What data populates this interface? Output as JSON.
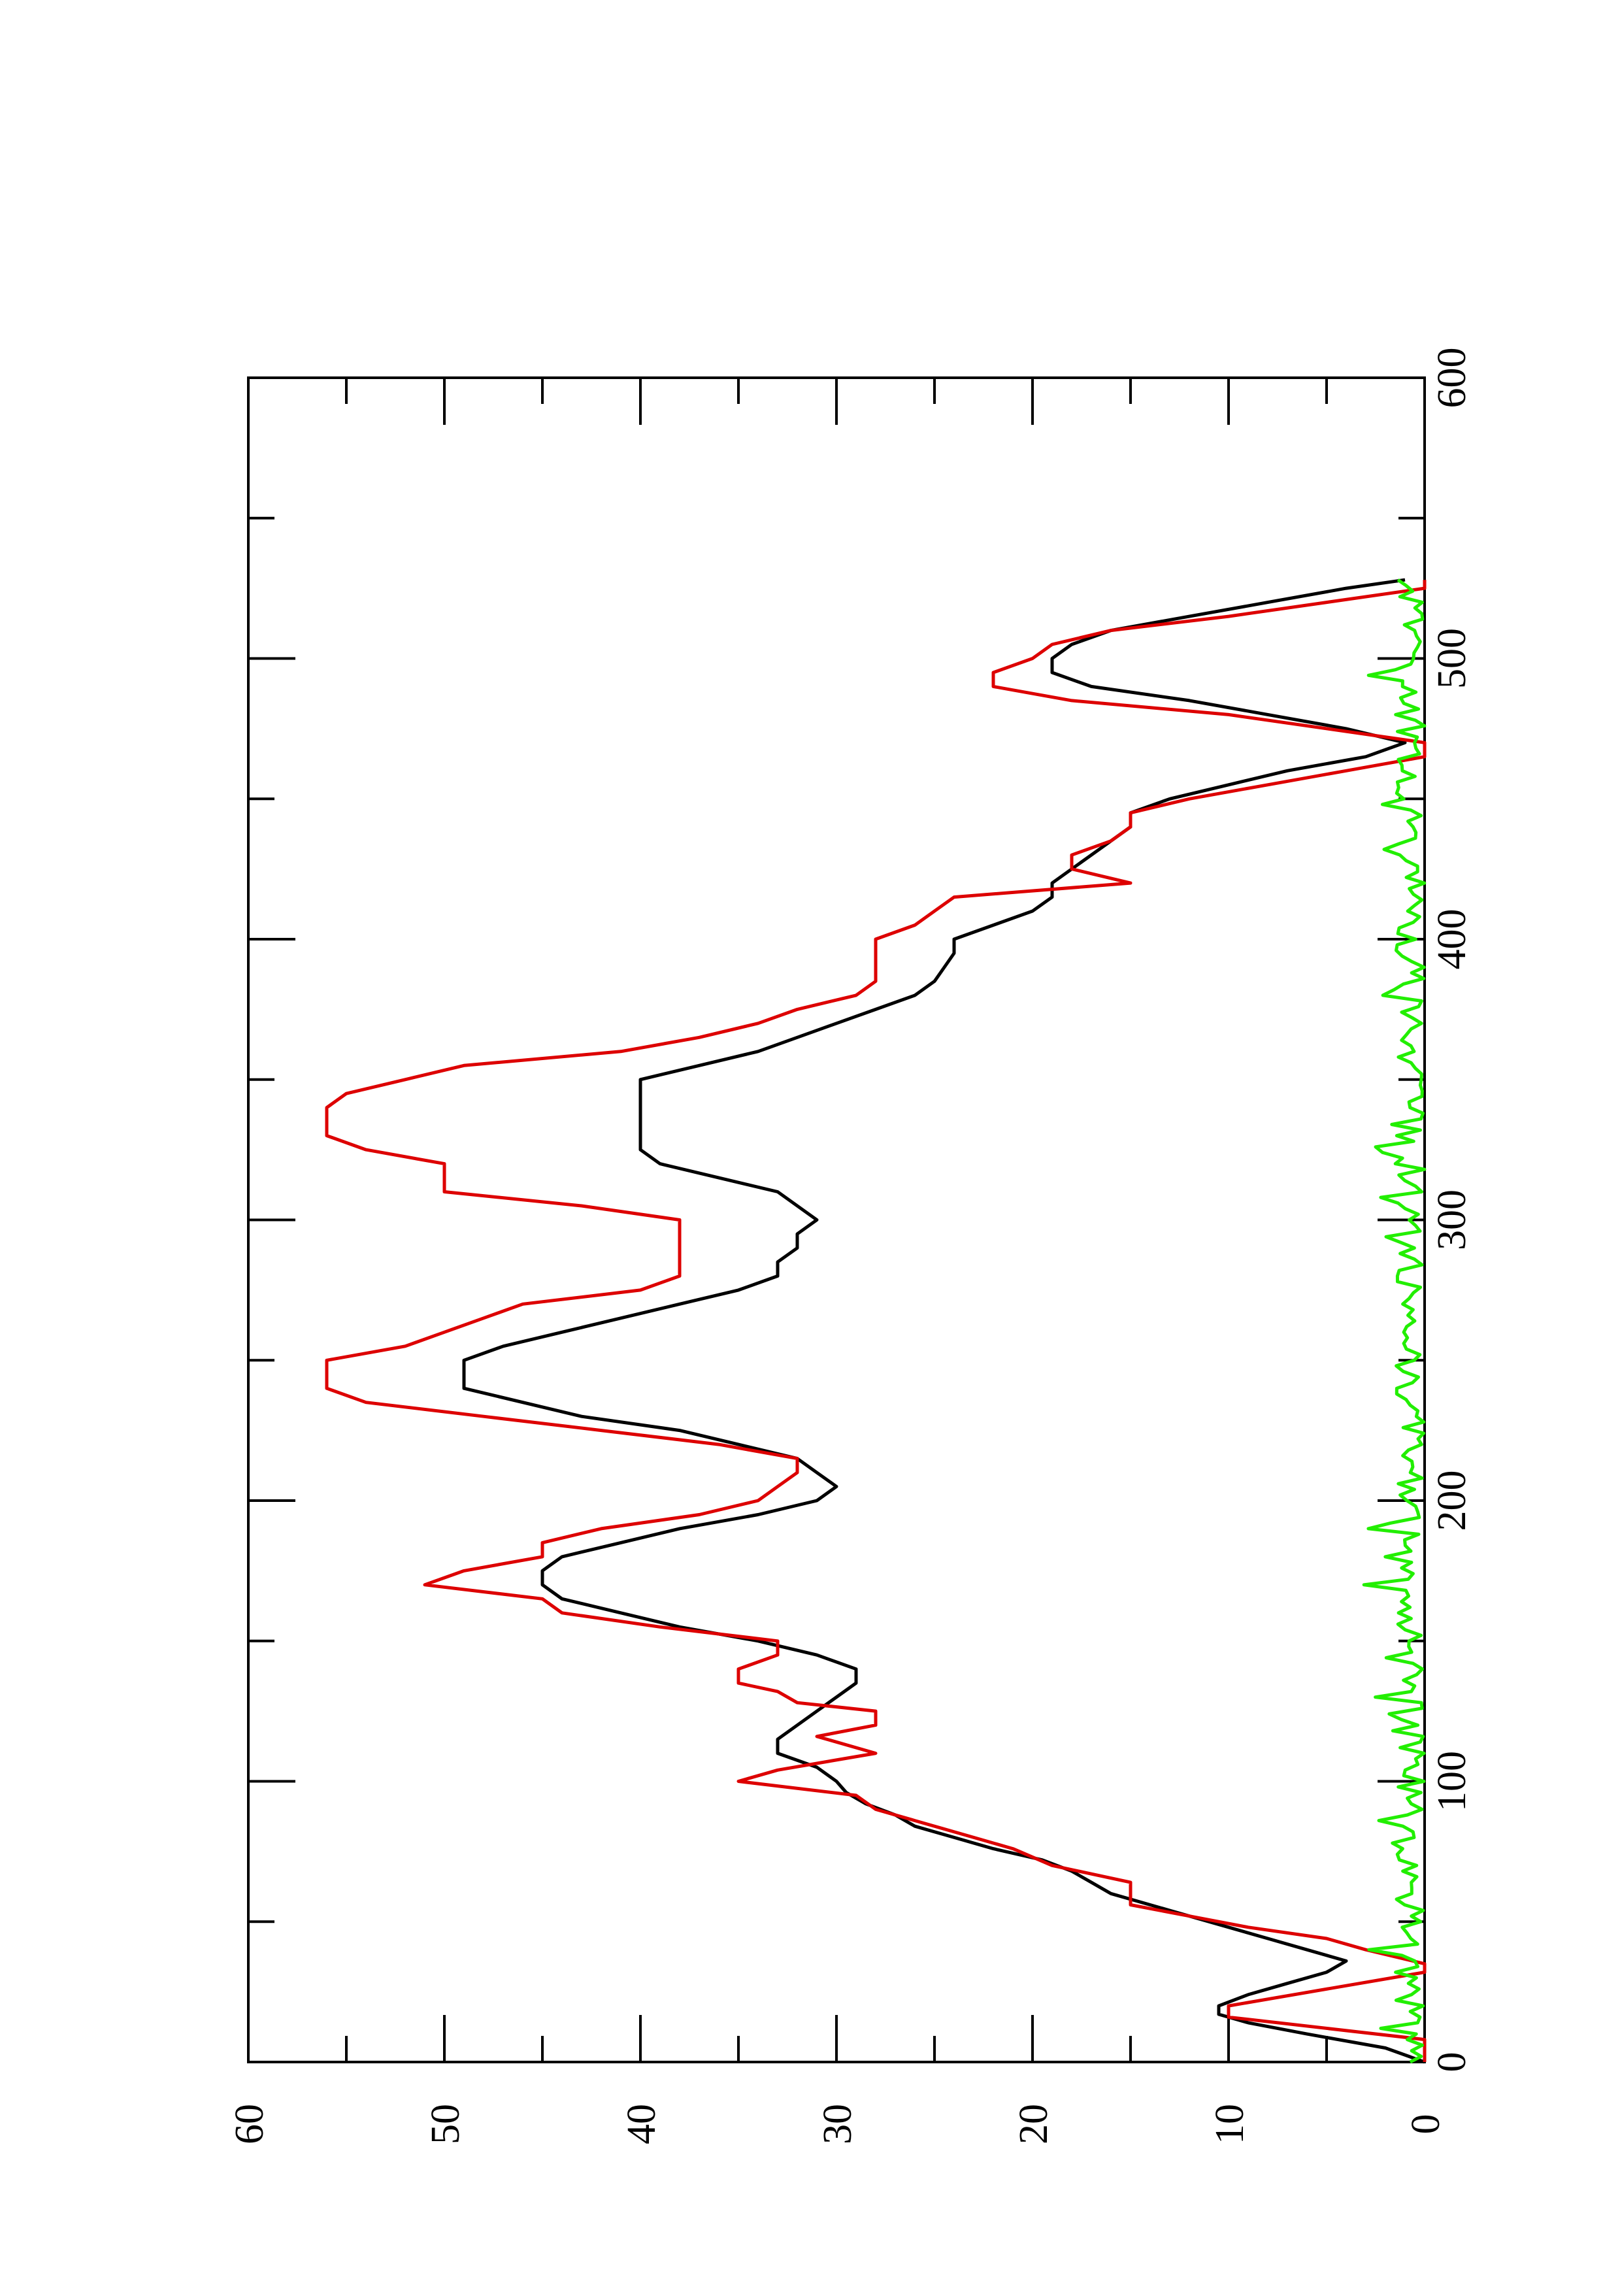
{
  "chart_data": {
    "type": "line",
    "title": "",
    "xlabel": "",
    "ylabel": "",
    "xlim": [
      0,
      600
    ],
    "ylim": [
      0,
      60
    ],
    "x_ticks": [
      "0",
      "100",
      "200",
      "300",
      "400",
      "500",
      "600"
    ],
    "y_ticks": [
      "0",
      "10",
      "20",
      "30",
      "40",
      "50",
      "60"
    ],
    "x_tick_values": [
      0,
      100,
      200,
      300,
      400,
      500,
      600
    ],
    "y_tick_values": [
      0,
      10,
      20,
      30,
      40,
      50,
      60
    ],
    "x_minor_tick_values": [
      50,
      150,
      250,
      350,
      450,
      550
    ],
    "y_minor_tick_values": [
      5,
      15,
      25,
      35,
      45,
      55
    ],
    "orientation": "rotated 90 degrees counter-clockwise",
    "grid": false,
    "legend": "none",
    "series": [
      {
        "color": "#000000",
        "style": "smooth line",
        "points": [
          [
            0,
            0
          ],
          [
            5,
            2
          ],
          [
            10,
            6
          ],
          [
            14,
            9
          ],
          [
            17,
            10.5
          ],
          [
            20,
            10.5
          ],
          [
            24,
            9
          ],
          [
            28,
            7
          ],
          [
            32,
            5
          ],
          [
            36,
            4
          ],
          [
            40,
            6
          ],
          [
            44,
            8
          ],
          [
            48,
            10
          ],
          [
            52,
            12
          ],
          [
            56,
            14
          ],
          [
            60,
            16
          ],
          [
            64,
            17
          ],
          [
            68,
            18
          ],
          [
            72,
            19.5
          ],
          [
            76,
            22
          ],
          [
            80,
            24
          ],
          [
            84,
            26
          ],
          [
            88,
            27
          ],
          [
            92,
            28.5
          ],
          [
            96,
            29.5
          ],
          [
            100,
            30
          ],
          [
            105,
            31
          ],
          [
            110,
            33
          ],
          [
            115,
            33
          ],
          [
            120,
            32
          ],
          [
            125,
            31
          ],
          [
            130,
            30
          ],
          [
            135,
            29
          ],
          [
            140,
            29
          ],
          [
            145,
            31
          ],
          [
            150,
            34
          ],
          [
            155,
            38
          ],
          [
            160,
            41
          ],
          [
            165,
            44
          ],
          [
            170,
            45
          ],
          [
            175,
            45
          ],
          [
            180,
            44
          ],
          [
            185,
            41
          ],
          [
            190,
            38
          ],
          [
            195,
            34
          ],
          [
            200,
            31
          ],
          [
            205,
            30
          ],
          [
            210,
            31
          ],
          [
            215,
            32
          ],
          [
            220,
            35
          ],
          [
            225,
            38
          ],
          [
            230,
            43
          ],
          [
            240,
            49
          ],
          [
            250,
            49
          ],
          [
            255,
            47
          ],
          [
            260,
            44
          ],
          [
            265,
            41
          ],
          [
            270,
            38
          ],
          [
            275,
            35
          ],
          [
            280,
            33
          ],
          [
            285,
            33
          ],
          [
            290,
            32
          ],
          [
            295,
            32
          ],
          [
            300,
            31
          ],
          [
            310,
            33
          ],
          [
            315,
            36
          ],
          [
            320,
            39
          ],
          [
            325,
            40
          ],
          [
            330,
            40
          ],
          [
            335,
            40
          ],
          [
            340,
            40
          ],
          [
            345,
            40
          ],
          [
            350,
            40
          ],
          [
            355,
            37
          ],
          [
            360,
            34
          ],
          [
            365,
            32
          ],
          [
            370,
            30
          ],
          [
            375,
            28
          ],
          [
            380,
            26
          ],
          [
            385,
            25
          ],
          [
            390,
            24.5
          ],
          [
            395,
            24
          ],
          [
            400,
            24
          ],
          [
            405,
            22
          ],
          [
            410,
            20
          ],
          [
            415,
            19
          ],
          [
            420,
            19
          ],
          [
            425,
            18
          ],
          [
            430,
            17
          ],
          [
            435,
            16
          ],
          [
            440,
            15
          ],
          [
            445,
            15
          ],
          [
            450,
            13
          ],
          [
            455,
            10
          ],
          [
            460,
            7
          ],
          [
            465,
            3
          ],
          [
            470,
            1
          ],
          [
            475,
            4
          ],
          [
            480,
            8
          ],
          [
            485,
            12
          ],
          [
            490,
            17
          ],
          [
            495,
            19
          ],
          [
            500,
            19
          ],
          [
            505,
            18
          ],
          [
            510,
            16
          ],
          [
            515,
            12
          ],
          [
            520,
            8
          ],
          [
            525,
            4
          ],
          [
            528,
            1
          ]
        ]
      },
      {
        "color": "#dd0000",
        "style": "piecewise line",
        "points": [
          [
            0,
            0
          ],
          [
            8,
            0
          ],
          [
            16,
            10
          ],
          [
            20,
            10
          ],
          [
            32,
            0
          ],
          [
            35,
            0
          ],
          [
            40,
            3
          ],
          [
            44,
            5
          ],
          [
            48,
            9
          ],
          [
            52,
            12
          ],
          [
            56,
            15
          ],
          [
            64,
            15
          ],
          [
            70,
            19
          ],
          [
            76,
            21
          ],
          [
            80,
            23
          ],
          [
            86,
            26
          ],
          [
            90,
            28
          ],
          [
            95,
            29
          ],
          [
            100,
            35
          ],
          [
            104,
            33
          ],
          [
            110,
            28
          ],
          [
            116,
            31
          ],
          [
            120,
            28
          ],
          [
            125,
            28
          ],
          [
            128,
            32
          ],
          [
            132,
            33
          ],
          [
            135,
            35
          ],
          [
            140,
            35
          ],
          [
            145,
            33
          ],
          [
            150,
            33
          ],
          [
            155,
            39
          ],
          [
            160,
            44
          ],
          [
            165,
            45
          ],
          [
            170,
            51
          ],
          [
            175,
            49
          ],
          [
            180,
            45
          ],
          [
            185,
            45
          ],
          [
            190,
            42
          ],
          [
            195,
            37
          ],
          [
            200,
            34
          ],
          [
            205,
            33
          ],
          [
            210,
            32
          ],
          [
            215,
            32
          ],
          [
            220,
            36
          ],
          [
            225,
            42
          ],
          [
            230,
            48
          ],
          [
            235,
            54
          ],
          [
            240,
            56
          ],
          [
            245,
            56
          ],
          [
            250,
            56
          ],
          [
            255,
            52
          ],
          [
            260,
            50
          ],
          [
            265,
            48
          ],
          [
            270,
            46
          ],
          [
            275,
            40
          ],
          [
            280,
            38
          ],
          [
            285,
            38
          ],
          [
            290,
            38
          ],
          [
            295,
            38
          ],
          [
            300,
            38
          ],
          [
            305,
            43
          ],
          [
            310,
            50
          ],
          [
            320,
            50
          ],
          [
            325,
            54
          ],
          [
            330,
            56
          ],
          [
            340,
            56
          ],
          [
            345,
            55
          ],
          [
            350,
            52
          ],
          [
            355,
            49
          ],
          [
            360,
            41
          ],
          [
            365,
            37
          ],
          [
            370,
            34
          ],
          [
            375,
            32
          ],
          [
            380,
            29
          ],
          [
            385,
            28
          ],
          [
            390,
            28
          ],
          [
            395,
            28
          ],
          [
            400,
            28
          ],
          [
            405,
            26
          ],
          [
            410,
            25
          ],
          [
            415,
            24
          ],
          [
            420,
            15
          ],
          [
            425,
            18
          ],
          [
            430,
            18
          ],
          [
            435,
            16
          ],
          [
            440,
            15
          ],
          [
            445,
            15
          ],
          [
            450,
            12
          ],
          [
            455,
            8
          ],
          [
            460,
            4
          ],
          [
            465,
            0
          ],
          [
            470,
            0
          ],
          [
            480,
            10
          ],
          [
            485,
            18
          ],
          [
            490,
            22
          ],
          [
            495,
            22
          ],
          [
            500,
            20
          ],
          [
            505,
            19
          ],
          [
            510,
            16
          ],
          [
            515,
            10
          ],
          [
            520,
            5
          ],
          [
            525,
            0
          ],
          [
            528,
            0
          ]
        ]
      },
      {
        "color": "#22ee00",
        "style": "noisy line",
        "amplitude": 1.5,
        "range": [
          0,
          528
        ]
      }
    ]
  }
}
